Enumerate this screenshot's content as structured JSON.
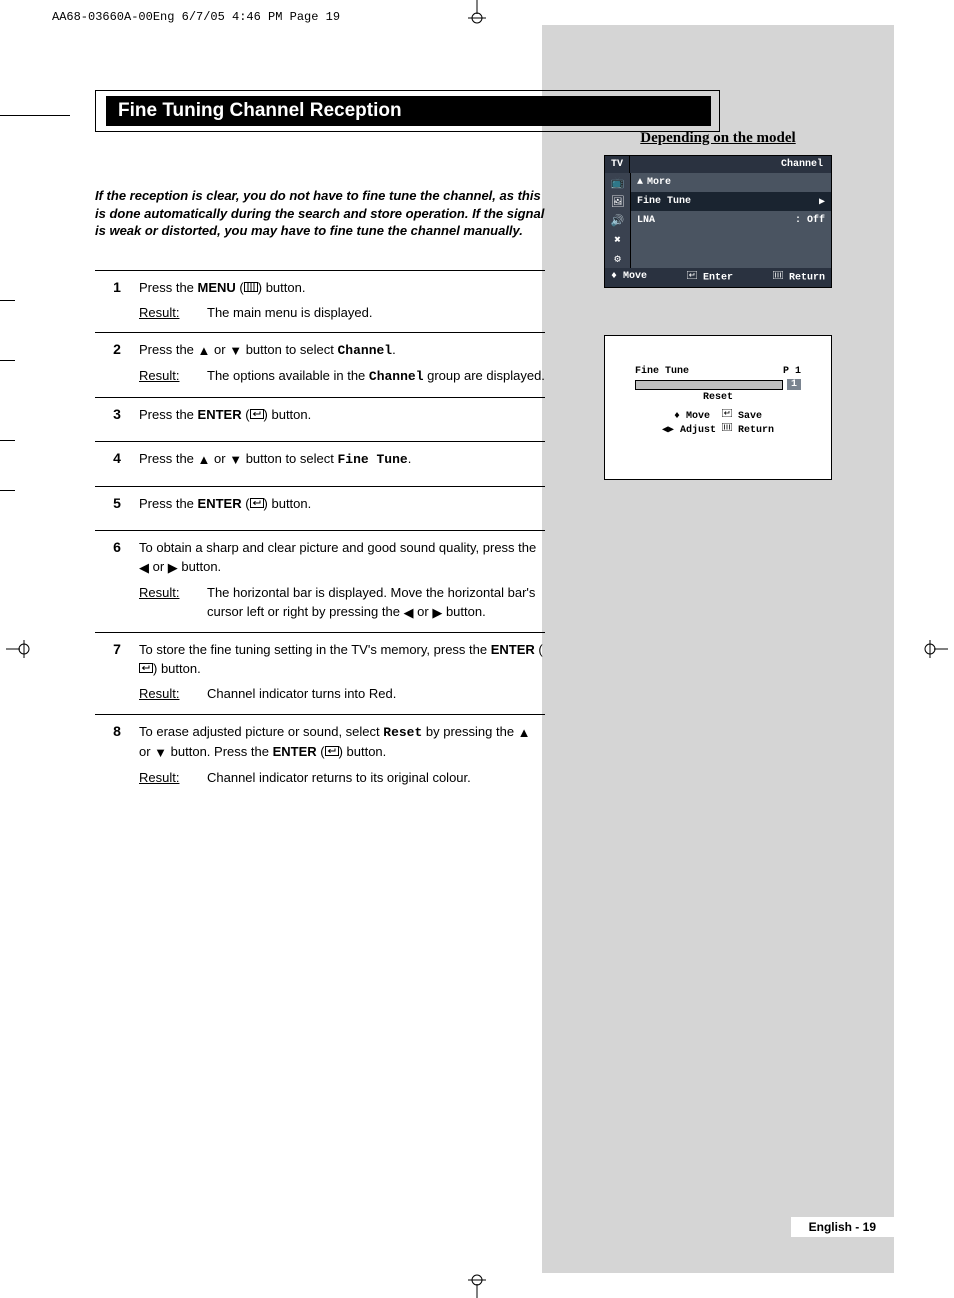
{
  "header_slug": "AA68-03660A-00Eng  6/7/05  4:46 PM  Page 19",
  "title": "Fine Tuning Channel Reception",
  "intro": "If the reception is clear, you do not have to fine tune the channel, as this is done automatically during the search and store operation. If the signal is weak or distorted, you may have to fine tune the channel manually.",
  "result_label": "Result:",
  "steps": [
    {
      "n": "1",
      "action_parts": [
        "Press the ",
        "MENU",
        " (",
        "ICON_MENU",
        ") button."
      ],
      "result": "The main menu is displayed."
    },
    {
      "n": "2",
      "action_parts": [
        "Press the ",
        "TRI_UP",
        " or ",
        "TRI_DOWN",
        " button to select ",
        "MONO:Channel",
        "."
      ],
      "result_parts": [
        "The options available in the ",
        "MONO:Channel",
        " group are displayed."
      ]
    },
    {
      "n": "3",
      "action_parts": [
        "Press the ",
        "ENTER",
        " (",
        "ICON_ENTER",
        ") button."
      ]
    },
    {
      "n": "4",
      "action_parts": [
        "Press the ",
        "TRI_UP",
        " or ",
        "TRI_DOWN",
        " button to select ",
        "MONO:Fine Tune",
        "."
      ]
    },
    {
      "n": "5",
      "action_parts": [
        "Press the ",
        "ENTER",
        " (",
        "ICON_ENTER",
        ") button."
      ]
    },
    {
      "n": "6",
      "action_parts": [
        "To obtain a sharp and clear picture and good sound quality, press the ",
        "TRI_LEFT",
        " or ",
        "TRI_RIGHT",
        " button."
      ],
      "result_parts": [
        "The horizontal bar is displayed. Move the horizontal bar's cursor left or right by pressing the ",
        "TRI_LEFT",
        " or ",
        "TRI_RIGHT",
        " button."
      ]
    },
    {
      "n": "7",
      "action_parts": [
        "To store the fine tuning setting in the TV's memory, press the ",
        "ENTER",
        " (",
        "ICON_ENTER",
        ") button."
      ],
      "result": "Channel indicator turns into Red."
    },
    {
      "n": "8",
      "action_parts": [
        "To erase adjusted picture or sound, select ",
        "MONO:Reset",
        "  by pressing the ",
        "TRI_UP",
        " or ",
        "TRI_DOWN",
        " button. Press the ",
        "ENTER",
        " (",
        "ICON_ENTER",
        ") button."
      ],
      "result": "Channel indicator returns to its original colour."
    }
  ],
  "model_heading": "Depending on the model",
  "osd1": {
    "tv": "TV",
    "title": "Channel",
    "items": [
      {
        "icon": "▲",
        "label": "More"
      },
      {
        "label": "Fine Tune",
        "arrow": "▶",
        "highlight": true
      },
      {
        "label": "LNA",
        "value": ": Off"
      }
    ],
    "footer": {
      "move": "Move",
      "enter": "Enter",
      "return": "Return"
    },
    "icons_left": [
      "📺",
      "🖼",
      "🔊",
      "✖",
      "⚙"
    ],
    "colors": {
      "bg": "#4a5461",
      "header": "#2a3240",
      "iconcol": "#3a4250",
      "highlight": "#1a2430",
      "border": "#000000",
      "text": "#ffffff"
    }
  },
  "osd2": {
    "title": "Fine Tune",
    "channel": "P 1",
    "badge": "1",
    "reset": "Reset",
    "nav1_a": "Move",
    "nav1_b": "Save",
    "nav2_a": "Adjust",
    "nav2_b": "Return",
    "colors": {
      "bar": "#bfbfbf",
      "badge": "#7a8490",
      "border": "#000000"
    }
  },
  "footer": "English - 19",
  "glyphs": {
    "TRI_UP": "▲",
    "TRI_DOWN": "▼",
    "TRI_LEFT": "◀",
    "TRI_RIGHT": "▶",
    "UPDOWN": "♦",
    "LEFTRIGHT": "◀▶"
  }
}
